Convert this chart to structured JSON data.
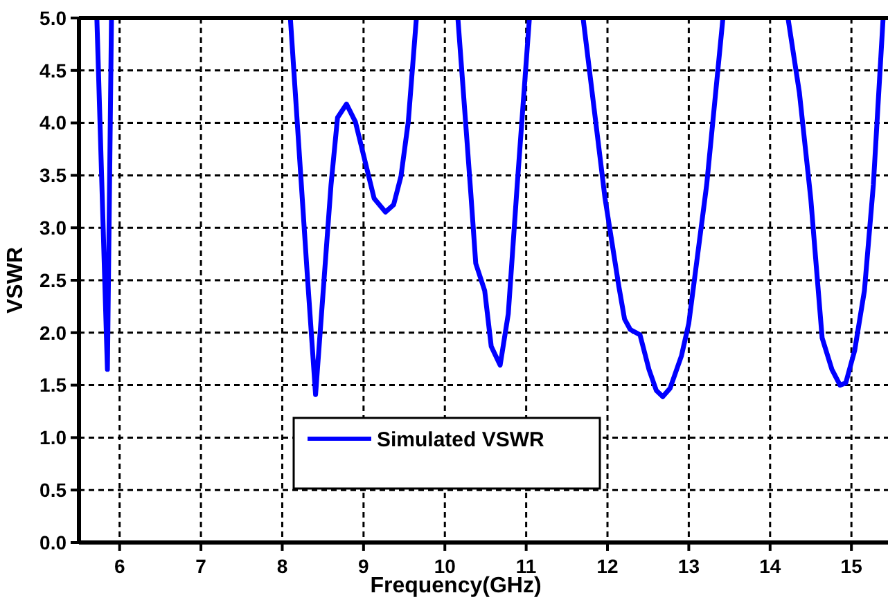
{
  "chart_data": {
    "type": "line",
    "xlabel": "Frequency(GHz)",
    "ylabel": "VSWR",
    "xlim": [
      5.5,
      15.45
    ],
    "ylim": [
      0,
      5
    ],
    "xticks": [
      6,
      7,
      8,
      9,
      10,
      11,
      12,
      13,
      14,
      15
    ],
    "yticks": [
      {
        "value": 0,
        "label": "0.0"
      },
      {
        "value": 0.5,
        "label": "0.5"
      },
      {
        "value": 1,
        "label": "1.0"
      },
      {
        "value": 1.5,
        "label": "1.5"
      },
      {
        "value": 2,
        "label": "2.0"
      },
      {
        "value": 2.5,
        "label": "2.5"
      },
      {
        "value": 3,
        "label": "3.0"
      },
      {
        "value": 3.5,
        "label": "3.5"
      },
      {
        "value": 4,
        "label": "4.0"
      },
      {
        "value": 4.5,
        "label": "4.5"
      },
      {
        "value": 5,
        "label": "5.0"
      }
    ],
    "grid": true,
    "legend": "bottom",
    "line_style": "solid",
    "marker": "none",
    "series": [
      {
        "name": "Simulated VSWR",
        "color": "#0000ff",
        "x": [
          5.72,
          5.85,
          5.9,
          7,
          8.1,
          8.31,
          8.41,
          8.6,
          8.68,
          8.79,
          8.9,
          9.13,
          9.27,
          9.37,
          9.46,
          9.55,
          9.65,
          10,
          10.16,
          10.27,
          10.32,
          10.38,
          10.49,
          10.57,
          10.68,
          10.78,
          10.89,
          11.04,
          11.3,
          11.7,
          11.97,
          12.14,
          12.21,
          12.28,
          12.4,
          12.51,
          12.6,
          12.68,
          12.77,
          12.91,
          13,
          13.22,
          13.42,
          13.8,
          14.22,
          14.36,
          14.5,
          14.64,
          14.76,
          14.86,
          14.93,
          15.04,
          15.16,
          15.27,
          15.39
        ],
        "values": [
          5,
          1.65,
          5,
          null,
          5,
          2.53,
          1.41,
          3.41,
          4.05,
          4.18,
          4.01,
          3.28,
          3.15,
          3.22,
          3.49,
          4.01,
          5,
          null,
          5,
          3.85,
          3.32,
          2.66,
          2.4,
          1.87,
          1.69,
          2.18,
          3.41,
          5,
          null,
          5,
          3.28,
          2.44,
          2.13,
          2.03,
          1.98,
          1.65,
          1.45,
          1.39,
          1.47,
          1.78,
          2.09,
          3.41,
          5,
          null,
          5,
          4.29,
          3.28,
          1.95,
          1.65,
          1.5,
          1.52,
          1.83,
          2.4,
          3.41,
          5
        ]
      }
    ]
  }
}
